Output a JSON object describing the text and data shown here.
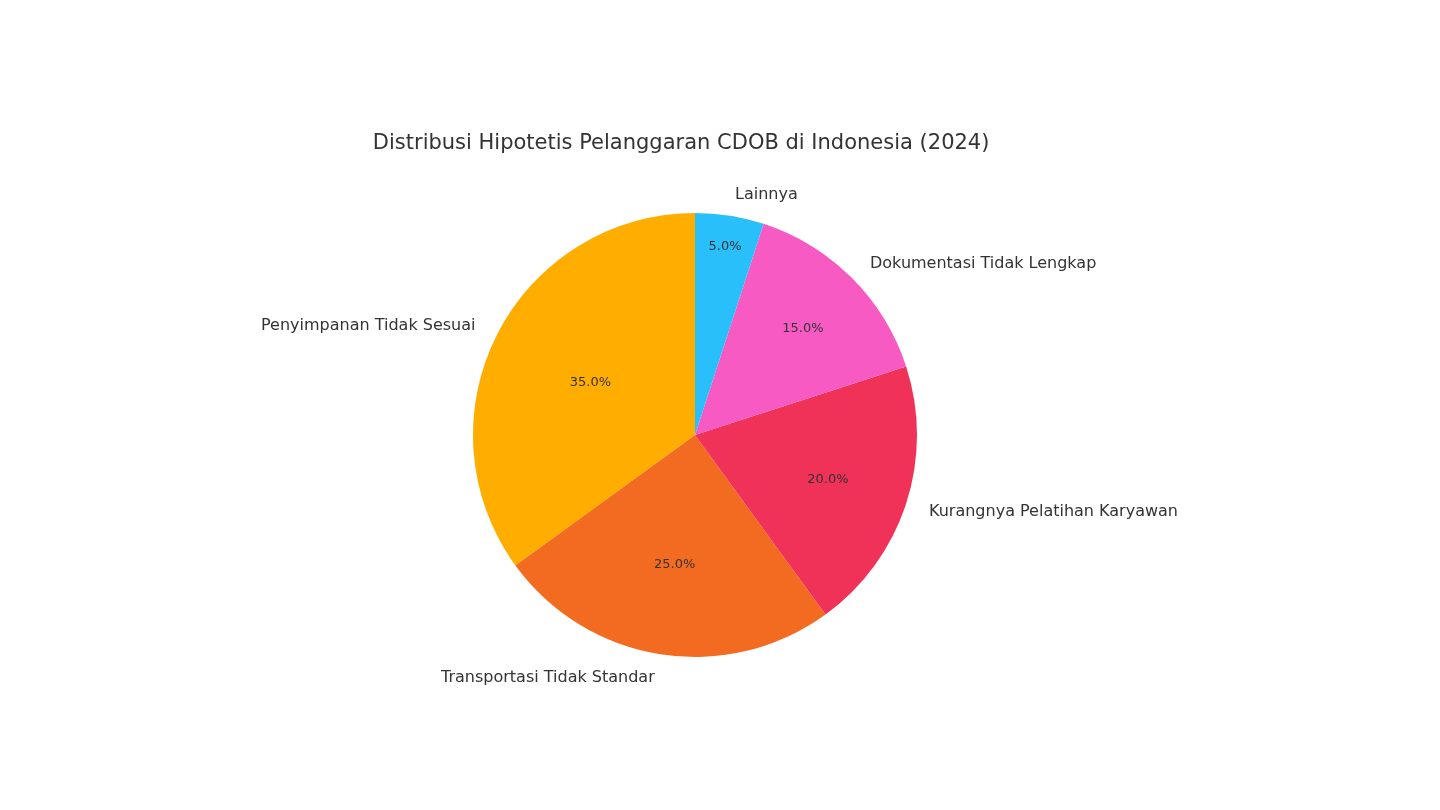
{
  "chart_data": {
    "type": "pie",
    "title": "Distribusi Hipotetis Pelanggaran CDOB di Indonesia (2024)",
    "categories": [
      "Penyimpanan Tidak Sesuai",
      "Transportasi Tidak Standar",
      "Kurangnya Pelatihan Karyawan",
      "Dokumentasi Tidak Lengkap",
      "Lainnya"
    ],
    "values": [
      35,
      25,
      20,
      15,
      5
    ],
    "value_labels": [
      "35.0%",
      "25.0%",
      "20.0%",
      "15.0%",
      "5.0%"
    ],
    "colors": [
      "#ffae00",
      "#f26b21",
      "#f03158",
      "#f75ac2",
      "#29bffb"
    ]
  }
}
